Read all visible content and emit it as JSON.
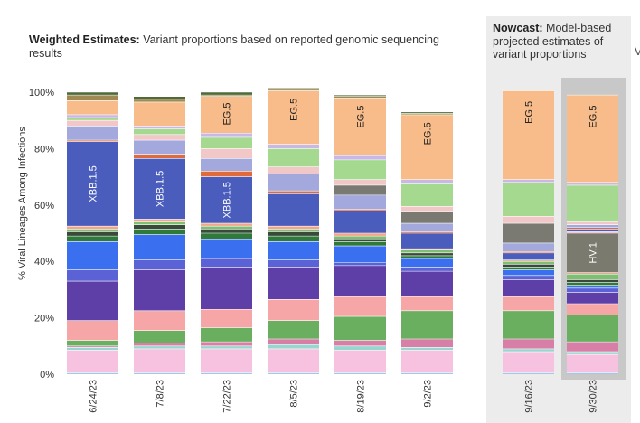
{
  "header": {
    "weighted_bold": "Weighted Estimates:",
    "weighted_text": " Variant proportions based on reported genomic sequencing results",
    "nowcast_bold": "Nowcast:",
    "nowcast_text": " Model-based projected estimates of variant proportions",
    "edge_fragment": "V"
  },
  "colors": {
    "nowcast_panel": "#ececec",
    "nowcast_highlight": "#c8c8c8"
  },
  "chart_data": {
    "type": "bar",
    "stacked": true,
    "ylabel": "% Viral Lineages Among Infections",
    "ylim": [
      0,
      100
    ],
    "yticks": [
      "0%",
      "20%",
      "40%",
      "60%",
      "80%",
      "100%"
    ],
    "grid": false,
    "categories": [
      "6/24/23",
      "7/8/23",
      "7/22/23",
      "8/5/23",
      "8/19/23",
      "9/2/23",
      "9/16/23",
      "9/30/23"
    ],
    "nowcast_categories": [
      "9/16/23",
      "9/30/23"
    ],
    "bar_labels": [
      {
        "category": "6/24/23",
        "text": "XBB.1.5"
      },
      {
        "category": "7/8/23",
        "text": "XBB.1.5"
      },
      {
        "category": "7/22/23",
        "text": "XBB.1.5"
      },
      {
        "category": "7/22/23",
        "text": "EG.5"
      },
      {
        "category": "8/5/23",
        "text": "EG.5"
      },
      {
        "category": "8/19/23",
        "text": "EG.5"
      },
      {
        "category": "9/2/23",
        "text": "EG.5"
      },
      {
        "category": "9/16/23",
        "text": "EG.5"
      },
      {
        "category": "9/30/23",
        "text": "EG.5"
      },
      {
        "category": "9/30/23",
        "text": "HV.1"
      }
    ],
    "series": [
      {
        "color": "#a7c7e7",
        "values": [
          0.5,
          0.5,
          0.5,
          0.5,
          0.5,
          0.5,
          0.5,
          0.5
        ]
      },
      {
        "color": "#f6c2df",
        "values": [
          8,
          8.5,
          8.5,
          8.5,
          8,
          8,
          7.5,
          6.5
        ]
      },
      {
        "color": "#9ad6cf",
        "values": [
          1,
          1,
          1,
          1.5,
          1.5,
          1,
          1,
          1
        ]
      },
      {
        "color": "#d77fa6",
        "values": [
          0.5,
          1,
          1.5,
          2,
          2,
          3,
          3.5,
          3.5
        ]
      },
      {
        "color": "#6aaf5f",
        "values": [
          2,
          4.5,
          5,
          6.5,
          8.5,
          10,
          10,
          9.5
        ]
      },
      {
        "color": "#f6a6a6",
        "values": [
          7,
          7,
          6.5,
          7.5,
          7,
          5,
          5,
          4
        ]
      },
      {
        "color": "#5e3fa8",
        "values": [
          14,
          14.5,
          15,
          11.5,
          11,
          9,
          6,
          4
        ]
      },
      {
        "color": "#5b62d6",
        "values": [
          4,
          3.5,
          3,
          2.5,
          1,
          1.5,
          1.5,
          1.5
        ]
      },
      {
        "color": "#3a6ff0",
        "values": [
          10,
          9,
          7,
          6.5,
          6,
          3,
          2,
          1
        ]
      },
      {
        "color": "#2f7a3a",
        "values": [
          2,
          2,
          2,
          2,
          1.5,
          1,
          1,
          1
        ]
      },
      {
        "color": "#3a4a3a",
        "values": [
          1.5,
          1.5,
          1.5,
          1.5,
          1,
          1,
          1,
          1
        ]
      },
      {
        "color": "#7fbf72",
        "values": [
          1,
          1,
          1,
          1,
          1,
          1,
          1,
          2
        ]
      },
      {
        "color": "#f4a58a",
        "values": [
          1,
          1,
          1,
          1,
          1,
          0.5,
          0.5,
          0.5
        ]
      },
      {
        "color": "#7a7a6e",
        "values": [
          0,
          0,
          0,
          0,
          0,
          0,
          0,
          14
        ]
      },
      {
        "color": "#f6b6c8",
        "values": [
          0,
          0,
          0,
          0,
          0,
          0,
          0,
          0.5
        ]
      },
      {
        "color": "#4a5dbd",
        "values": [
          30,
          21.5,
          16.5,
          11.5,
          8,
          5.5,
          2.5,
          1
        ]
      },
      {
        "color": "#e06a3a",
        "values": [
          0.5,
          1.5,
          2,
          1,
          0.5,
          0.5,
          0.5,
          0.5
        ]
      },
      {
        "color": "#a3a9dd",
        "values": [
          5,
          5,
          4.5,
          6,
          5,
          3,
          3,
          1
        ]
      },
      {
        "color": "#7a7a72",
        "values": [
          0,
          0,
          0,
          0,
          3.5,
          4,
          7,
          0
        ]
      },
      {
        "color": "#f2c7c7",
        "values": [
          2,
          2,
          3.5,
          2.5,
          2,
          2,
          2.5,
          1
        ]
      },
      {
        "color": "#a5d98f",
        "values": [
          1,
          2,
          4,
          6.5,
          7,
          8,
          12,
          13
        ]
      },
      {
        "color": "#c9b7e6",
        "values": [
          1,
          1,
          1.5,
          1.5,
          1.5,
          1.5,
          1,
          1
        ]
      },
      {
        "color": "#f7bc8a",
        "values": [
          5,
          8.5,
          13,
          19,
          20.5,
          23,
          31.5,
          31
        ]
      },
      {
        "color": "#9e8a52",
        "values": [
          2,
          1,
          0.5,
          0.5,
          0.5,
          0.5,
          0,
          0
        ]
      },
      {
        "color": "#4d6b3a",
        "values": [
          1,
          1,
          1,
          0.5,
          0.5,
          0.5,
          0,
          0
        ]
      }
    ]
  }
}
